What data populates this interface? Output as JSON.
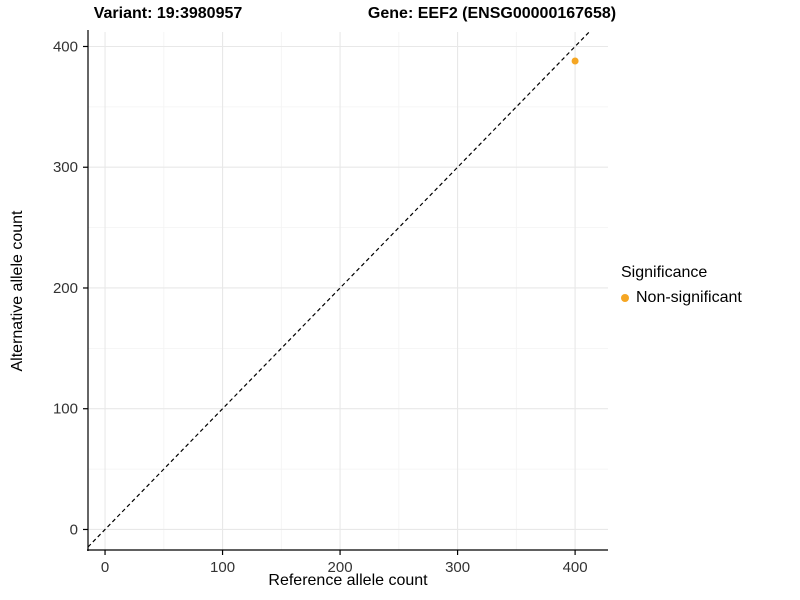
{
  "chart_data": {
    "type": "scatter",
    "title_left": "Variant: 19:3980957",
    "title_right": "Gene: EEF2 (ENSG00000167658)",
    "xlabel": "Reference allele count",
    "ylabel": "Alternative allele count",
    "xlim": [
      -14.5,
      428
    ],
    "ylim": [
      -17,
      412
    ],
    "xticks": [
      0,
      100,
      200,
      300,
      400
    ],
    "yticks": [
      0,
      100,
      200,
      300,
      400
    ],
    "minor_xticks": [
      50,
      150,
      250,
      350
    ],
    "minor_yticks": [
      50,
      150,
      250,
      350
    ],
    "grid": {
      "major_color": "#E8E8E8",
      "minor_color": "#F3F3F3"
    },
    "axis_color": "#000000",
    "tick_label_color": "#333333",
    "identity_line": {
      "show": true,
      "style": "dashed",
      "color": "#000000"
    },
    "series": [
      {
        "name": "Non-significant",
        "color": "#F5A623",
        "points": [
          {
            "x": 400,
            "y": 388
          }
        ]
      }
    ],
    "legend": {
      "title": "Significance",
      "position": "right",
      "items": [
        {
          "label": "Non-significant",
          "color": "#F5A623"
        }
      ]
    }
  }
}
